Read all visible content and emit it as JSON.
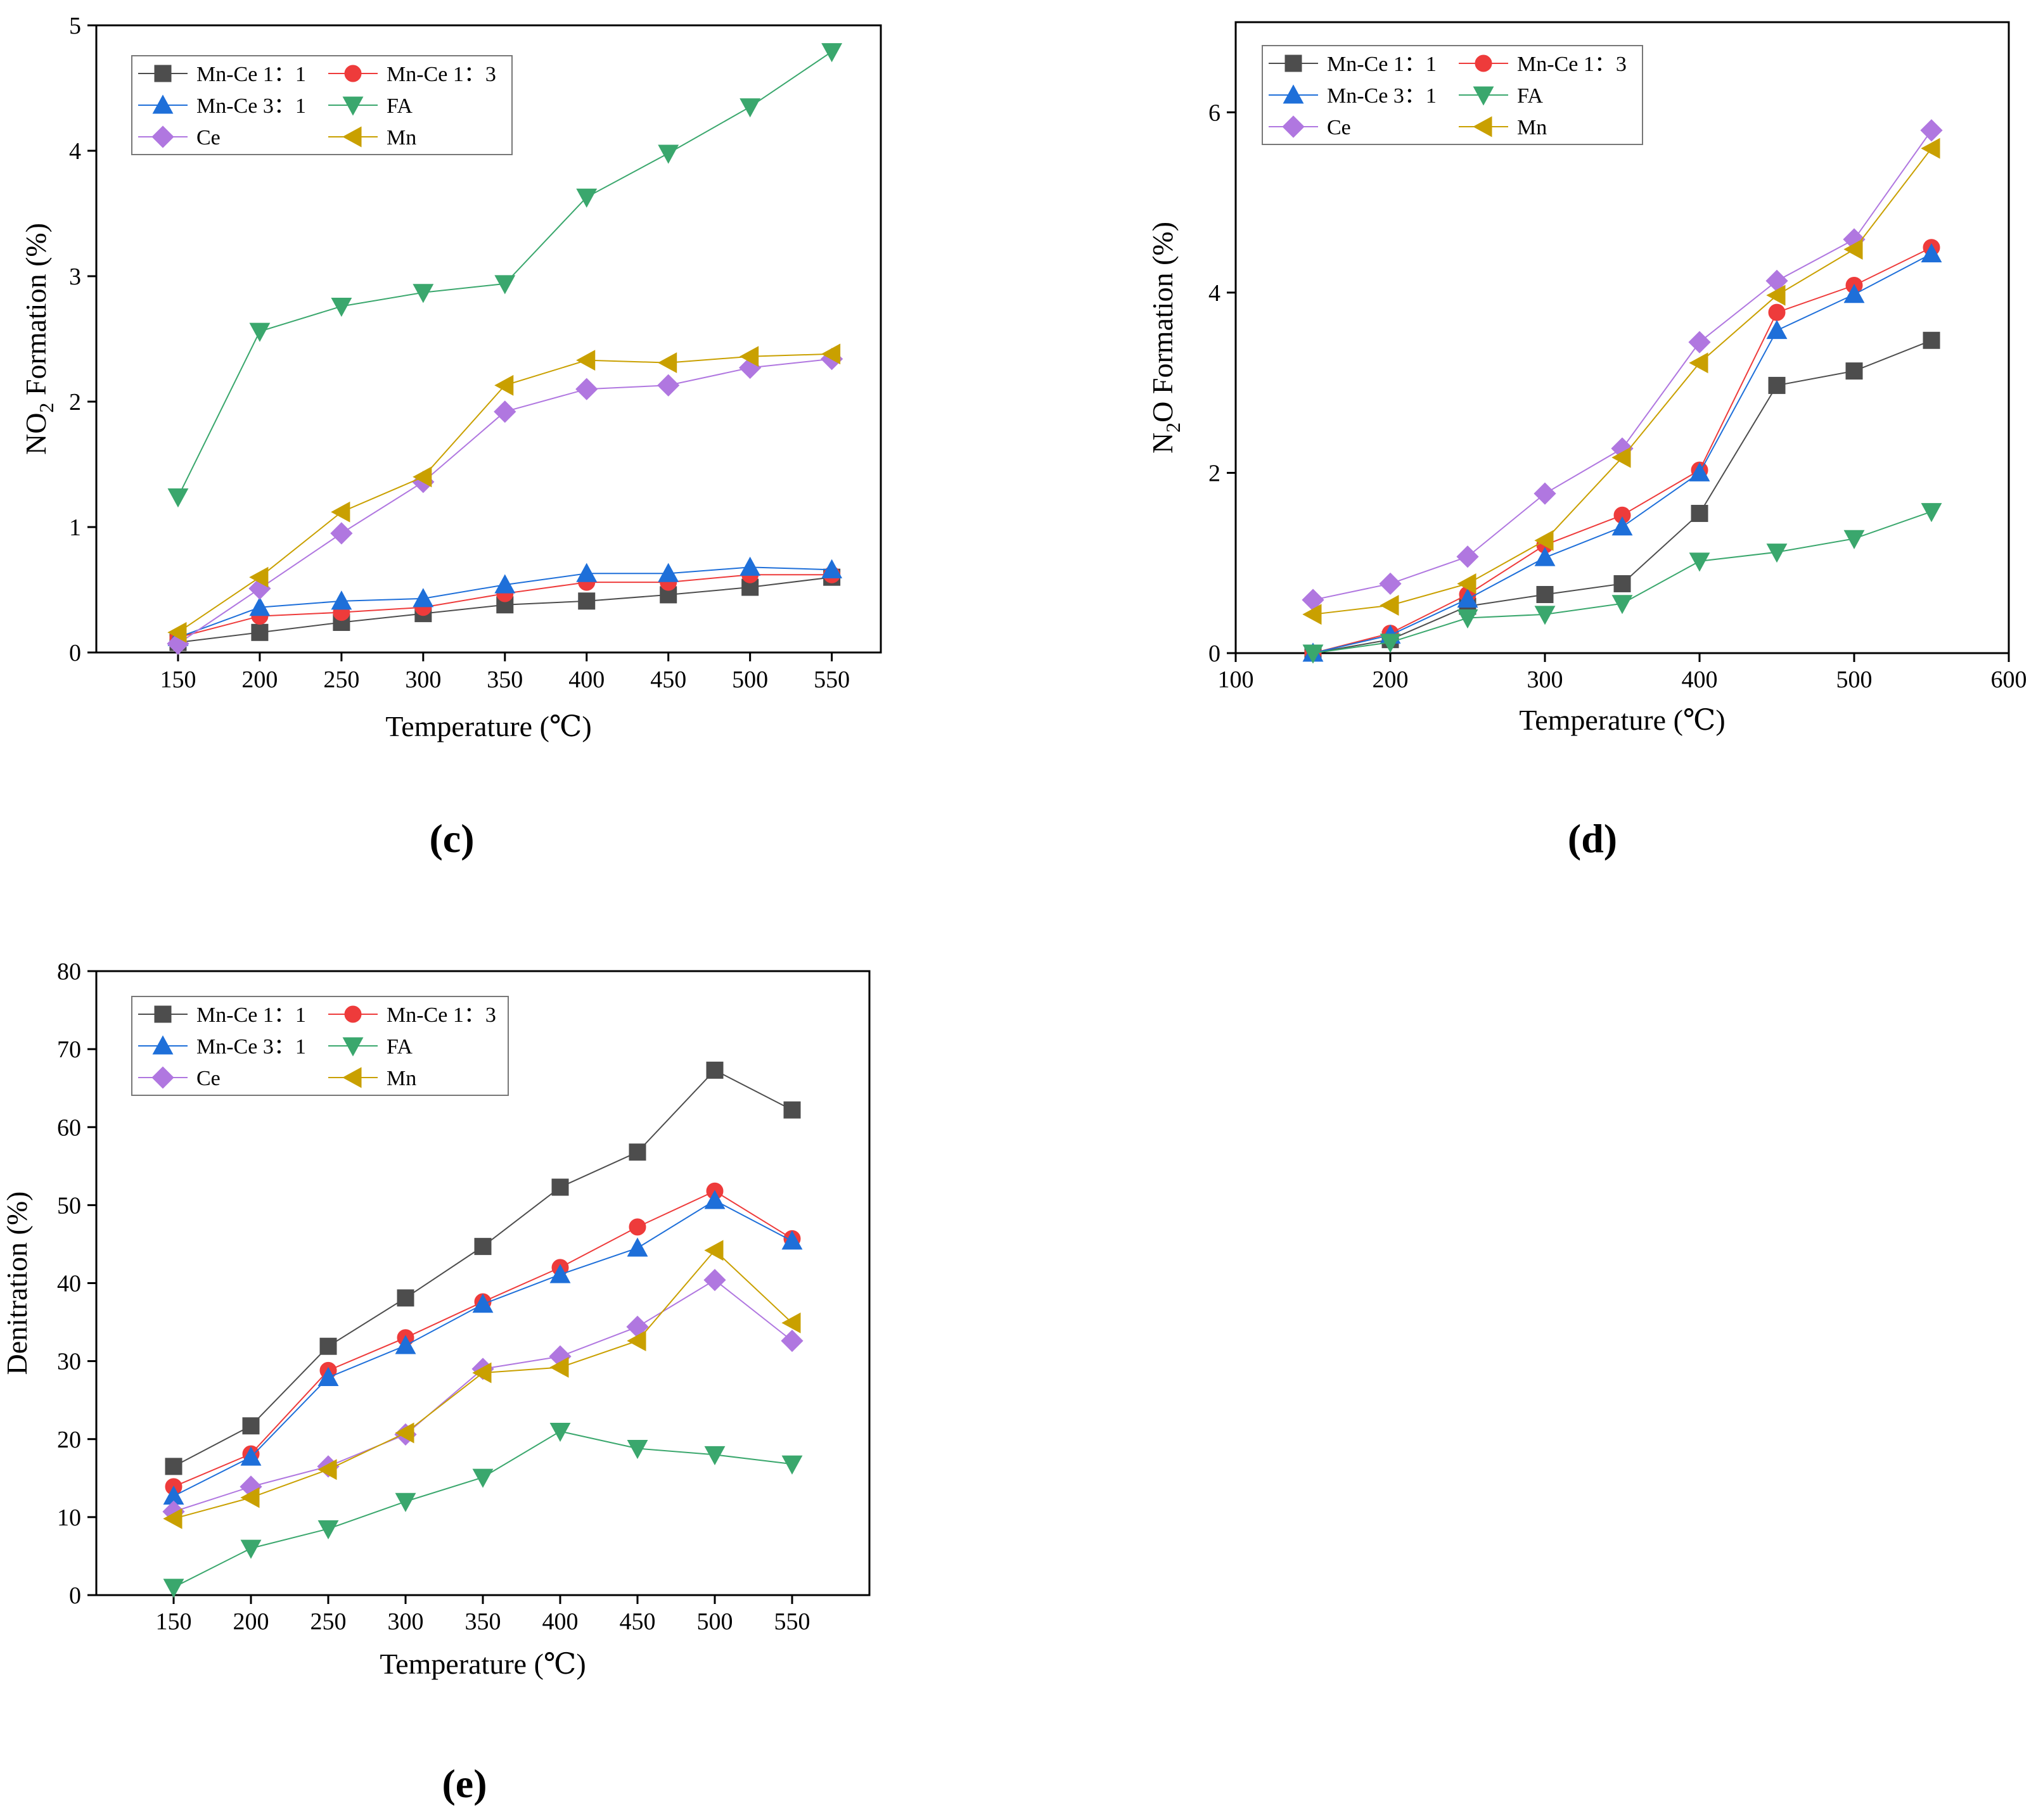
{
  "chart_data": [
    {
      "id": "c",
      "type": "line",
      "panel_label": "(c)",
      "label_letter": "c",
      "title": "",
      "xlabel": "Temperature (℃)",
      "ylabel_parts": [
        "NO",
        "2",
        " Formation (%)"
      ],
      "xlim": [
        100,
        580
      ],
      "ylim": [
        0,
        5
      ],
      "xticks": [
        "150",
        "200",
        "250",
        "300",
        "350",
        "400",
        "450",
        "500",
        "550"
      ],
      "yticks": [
        "0",
        "1",
        "2",
        "3",
        "4",
        "5"
      ],
      "x": [
        150,
        200,
        250,
        300,
        350,
        400,
        450,
        500,
        550
      ],
      "legend_position": "top-left",
      "series": [
        {
          "name": "Mn-Ce 1：1",
          "color": "#4d4d4d",
          "marker": "square",
          "values": [
            0.08,
            0.16,
            0.24,
            0.31,
            0.38,
            0.41,
            0.46,
            0.52,
            0.6
          ]
        },
        {
          "name": "Mn-Ce 1：3",
          "color": "#ee3b3b",
          "marker": "circle",
          "values": [
            0.12,
            0.29,
            0.32,
            0.36,
            0.47,
            0.56,
            0.56,
            0.62,
            0.62
          ]
        },
        {
          "name": "Mn-Ce 3：1",
          "color": "#1e6fd9",
          "marker": "triangle-up",
          "values": [
            0.12,
            0.36,
            0.41,
            0.43,
            0.54,
            0.63,
            0.63,
            0.68,
            0.66
          ]
        },
        {
          "name": "FA",
          "color": "#3aa76d",
          "marker": "triangle-down",
          "values": [
            1.24,
            2.56,
            2.76,
            2.87,
            2.94,
            3.63,
            3.98,
            4.35,
            4.79
          ]
        },
        {
          "name": "Ce",
          "color": "#b077e0",
          "marker": "diamond",
          "values": [
            0.07,
            0.51,
            0.95,
            1.36,
            1.92,
            2.1,
            2.13,
            2.27,
            2.34
          ]
        },
        {
          "name": "Mn",
          "color": "#c9a000",
          "marker": "triangle-left",
          "values": [
            0.16,
            0.6,
            1.12,
            1.4,
            2.13,
            2.33,
            2.31,
            2.36,
            2.38
          ]
        }
      ]
    },
    {
      "id": "d",
      "type": "line",
      "panel_label": "(d)",
      "label_letter": "d",
      "title": "",
      "xlabel": "Temperature (℃)",
      "ylabel_parts": [
        "N",
        "2",
        "O Formation (%)"
      ],
      "xlim": [
        100,
        600
      ],
      "ylim": [
        0,
        7
      ],
      "xticks": [
        "100",
        "200",
        "300",
        "400",
        "500",
        "600"
      ],
      "yticks": [
        "0",
        "2",
        "4",
        "6"
      ],
      "x": [
        150,
        200,
        250,
        300,
        350,
        400,
        450,
        500,
        550
      ],
      "legend_position": "top-left",
      "series": [
        {
          "name": "Mn-Ce 1：1",
          "color": "#4d4d4d",
          "marker": "square",
          "values": [
            0.0,
            0.15,
            0.52,
            0.65,
            0.77,
            1.55,
            2.97,
            3.13,
            3.47
          ]
        },
        {
          "name": "Mn-Ce 1：3",
          "color": "#ee3b3b",
          "marker": "circle",
          "values": [
            0.0,
            0.22,
            0.65,
            1.2,
            1.53,
            2.03,
            3.78,
            4.08,
            4.5
          ]
        },
        {
          "name": "Mn-Ce 3：1",
          "color": "#1e6fd9",
          "marker": "triangle-up",
          "values": [
            0.0,
            0.2,
            0.6,
            1.06,
            1.4,
            2.0,
            3.58,
            3.98,
            4.43
          ]
        },
        {
          "name": "FA",
          "color": "#3aa76d",
          "marker": "triangle-down",
          "values": [
            0.0,
            0.12,
            0.39,
            0.43,
            0.55,
            1.02,
            1.12,
            1.27,
            1.57
          ]
        },
        {
          "name": "Ce",
          "color": "#b077e0",
          "marker": "diamond",
          "values": [
            0.59,
            0.77,
            1.07,
            1.77,
            2.27,
            3.45,
            4.13,
            4.59,
            5.8
          ]
        },
        {
          "name": "Mn",
          "color": "#c9a000",
          "marker": "triangle-left",
          "values": [
            0.43,
            0.53,
            0.77,
            1.25,
            2.17,
            3.22,
            3.97,
            4.48,
            5.6
          ]
        }
      ]
    },
    {
      "id": "e",
      "type": "line",
      "panel_label": "(e)",
      "label_letter": "e",
      "title": "",
      "xlabel": "Temperature (℃)",
      "ylabel_parts": [
        "Denitration (%)",
        "",
        ""
      ],
      "xlim": [
        100,
        600
      ],
      "ylim": [
        0,
        80
      ],
      "xticks": [
        "150",
        "200",
        "250",
        "300",
        "350",
        "400",
        "450",
        "500",
        "550"
      ],
      "yticks": [
        "0",
        "10",
        "20",
        "30",
        "40",
        "50",
        "60",
        "70",
        "80"
      ],
      "x": [
        150,
        200,
        250,
        300,
        350,
        400,
        450,
        500,
        550
      ],
      "legend_position": "top-left",
      "series": [
        {
          "name": "Mn-Ce 1：1",
          "color": "#4d4d4d",
          "marker": "square",
          "values": [
            16.5,
            21.7,
            31.9,
            38.1,
            44.7,
            52.3,
            56.8,
            67.3,
            62.2
          ]
        },
        {
          "name": "Mn-Ce 1：3",
          "color": "#ee3b3b",
          "marker": "circle",
          "values": [
            13.9,
            18.1,
            28.8,
            33.0,
            37.6,
            42.0,
            47.2,
            51.8,
            45.7
          ]
        },
        {
          "name": "Mn-Ce 3：1",
          "color": "#1e6fd9",
          "marker": "triangle-up",
          "values": [
            12.7,
            17.7,
            27.9,
            32.0,
            37.3,
            41.1,
            44.5,
            50.6,
            45.4
          ]
        },
        {
          "name": "FA",
          "color": "#3aa76d",
          "marker": "triangle-down",
          "values": [
            1.0,
            6.0,
            8.5,
            12.0,
            15.1,
            21.0,
            18.8,
            18.0,
            16.8
          ]
        },
        {
          "name": "Ce",
          "color": "#b077e0",
          "marker": "diamond",
          "values": [
            10.7,
            13.9,
            16.5,
            20.6,
            29.0,
            30.6,
            34.4,
            40.4,
            32.6
          ]
        },
        {
          "name": "Mn",
          "color": "#c9a000",
          "marker": "triangle-left",
          "values": [
            9.8,
            12.5,
            16.1,
            20.8,
            28.5,
            29.2,
            32.6,
            44.2,
            34.9
          ]
        }
      ]
    }
  ]
}
